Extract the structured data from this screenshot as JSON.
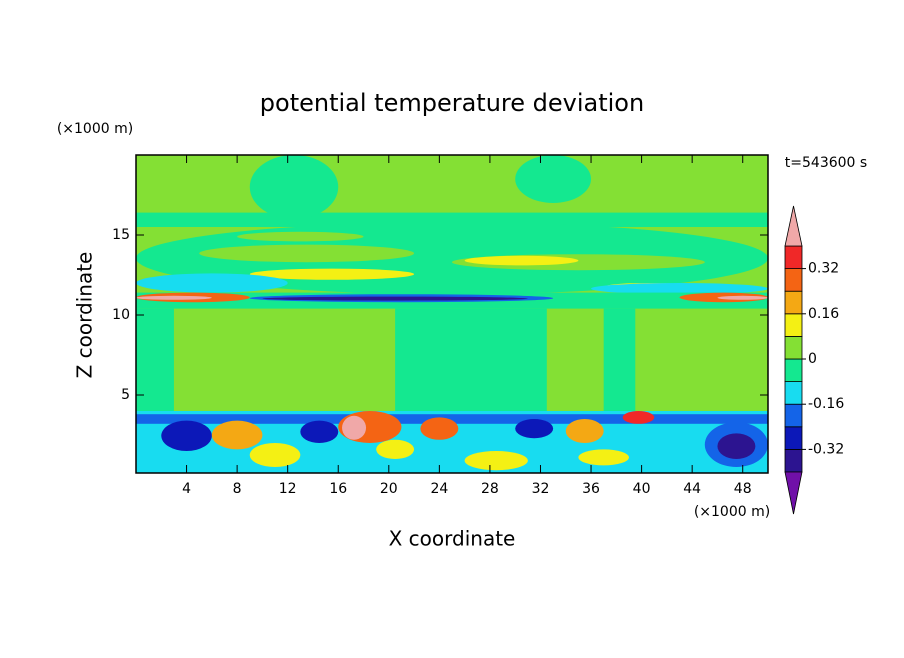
{
  "chart_data": {
    "type": "contour",
    "title": "potential temperature deviation",
    "x_label": "X coordinate",
    "y_label": "Z coordinate",
    "x_unit": "(×1000 m)",
    "y_unit": "(×1000 m)",
    "time_label": "t=543600 s",
    "xlim": [
      0,
      50
    ],
    "ylim": [
      0,
      20
    ],
    "xticks": [
      4,
      8,
      12,
      16,
      20,
      24,
      28,
      32,
      36,
      40,
      44,
      48
    ],
    "yticks": [
      5,
      10,
      15
    ],
    "levels": [
      -0.4,
      -0.32,
      -0.24,
      -0.16,
      -0.08,
      0,
      0.08,
      0.16,
      0.24,
      0.32,
      0.4
    ],
    "colorbar_ticks": [
      -0.32,
      -0.16,
      0,
      0.16,
      0.32
    ],
    "colors": [
      "#7010a8",
      "#2c1490",
      "#0c18b8",
      "#1464e8",
      "#18dcf0",
      "#14e890",
      "#84e034",
      "#f4f014",
      "#f4a814",
      "#f46414",
      "#f02828",
      "#f0a8a8"
    ]
  }
}
